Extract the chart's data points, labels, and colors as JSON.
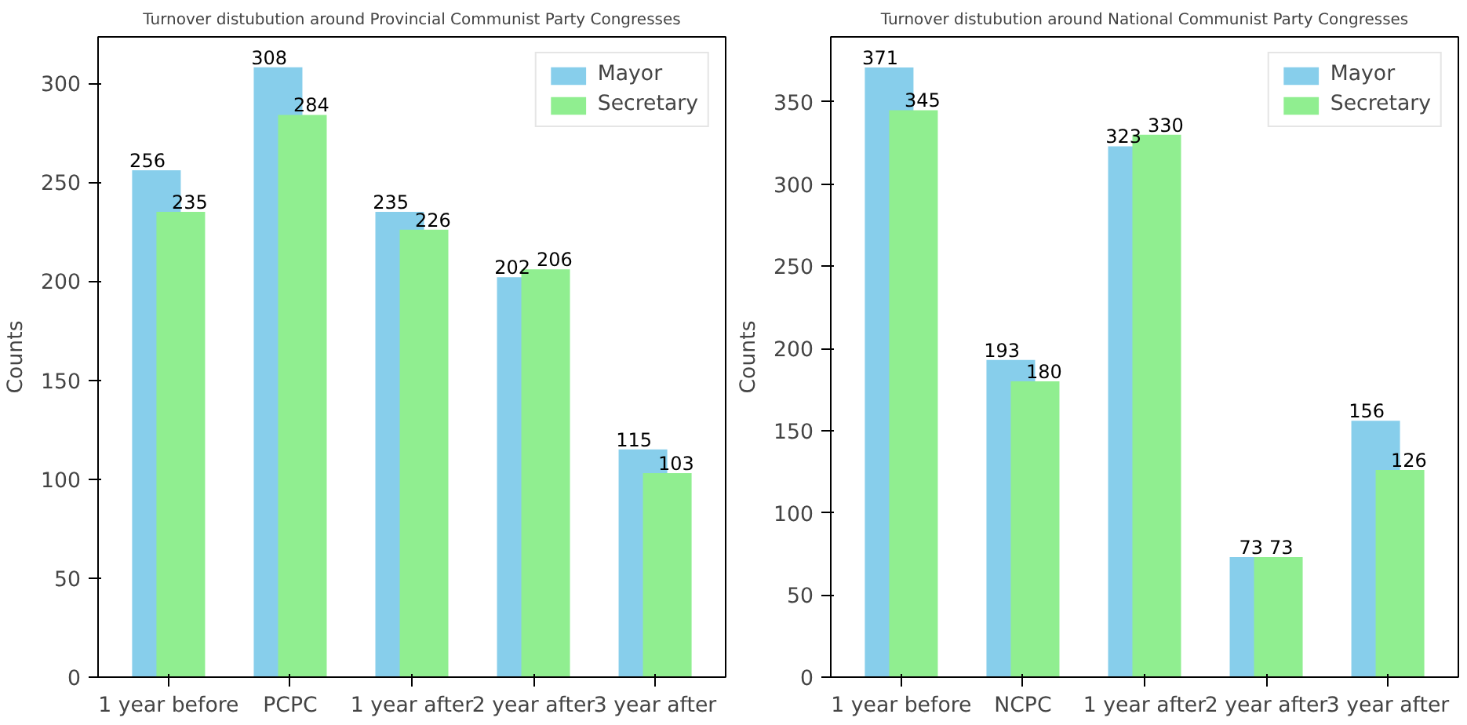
{
  "chart_data": [
    {
      "type": "bar",
      "title": "Turnover distubution around Provincial Communist Party Congresses",
      "ylabel": "Counts",
      "categories": [
        "1 year before",
        "PCPC",
        "1 year after",
        "2 year after",
        "3 year after"
      ],
      "series": [
        {
          "name": "Mayor",
          "color": "#87ceeb",
          "values": [
            256,
            308,
            235,
            202,
            115
          ]
        },
        {
          "name": "Secretary",
          "color": "#90ee90",
          "values": [
            235,
            284,
            226,
            206,
            103
          ]
        }
      ],
      "ylim": [
        0,
        323.4
      ],
      "yticks": [
        0,
        50,
        100,
        150,
        200,
        250,
        300
      ],
      "data_labels": true,
      "legend": "top right",
      "grid": false
    },
    {
      "type": "bar",
      "title": "Turnover distubution around National Communist Party Congresses",
      "ylabel": "Counts",
      "categories": [
        "1 year before",
        "NCPC",
        "1 year after",
        "2 year after",
        "3 year after"
      ],
      "series": [
        {
          "name": "Mayor",
          "color": "#87ceeb",
          "values": [
            371,
            193,
            323,
            73,
            156
          ]
        },
        {
          "name": "Secretary",
          "color": "#90ee90",
          "values": [
            345,
            180,
            330,
            73,
            126
          ]
        }
      ],
      "ylim": [
        0,
        389.6
      ],
      "yticks": [
        0,
        50,
        100,
        150,
        200,
        250,
        300,
        350
      ],
      "data_labels": true,
      "legend": "top right",
      "grid": false
    }
  ]
}
